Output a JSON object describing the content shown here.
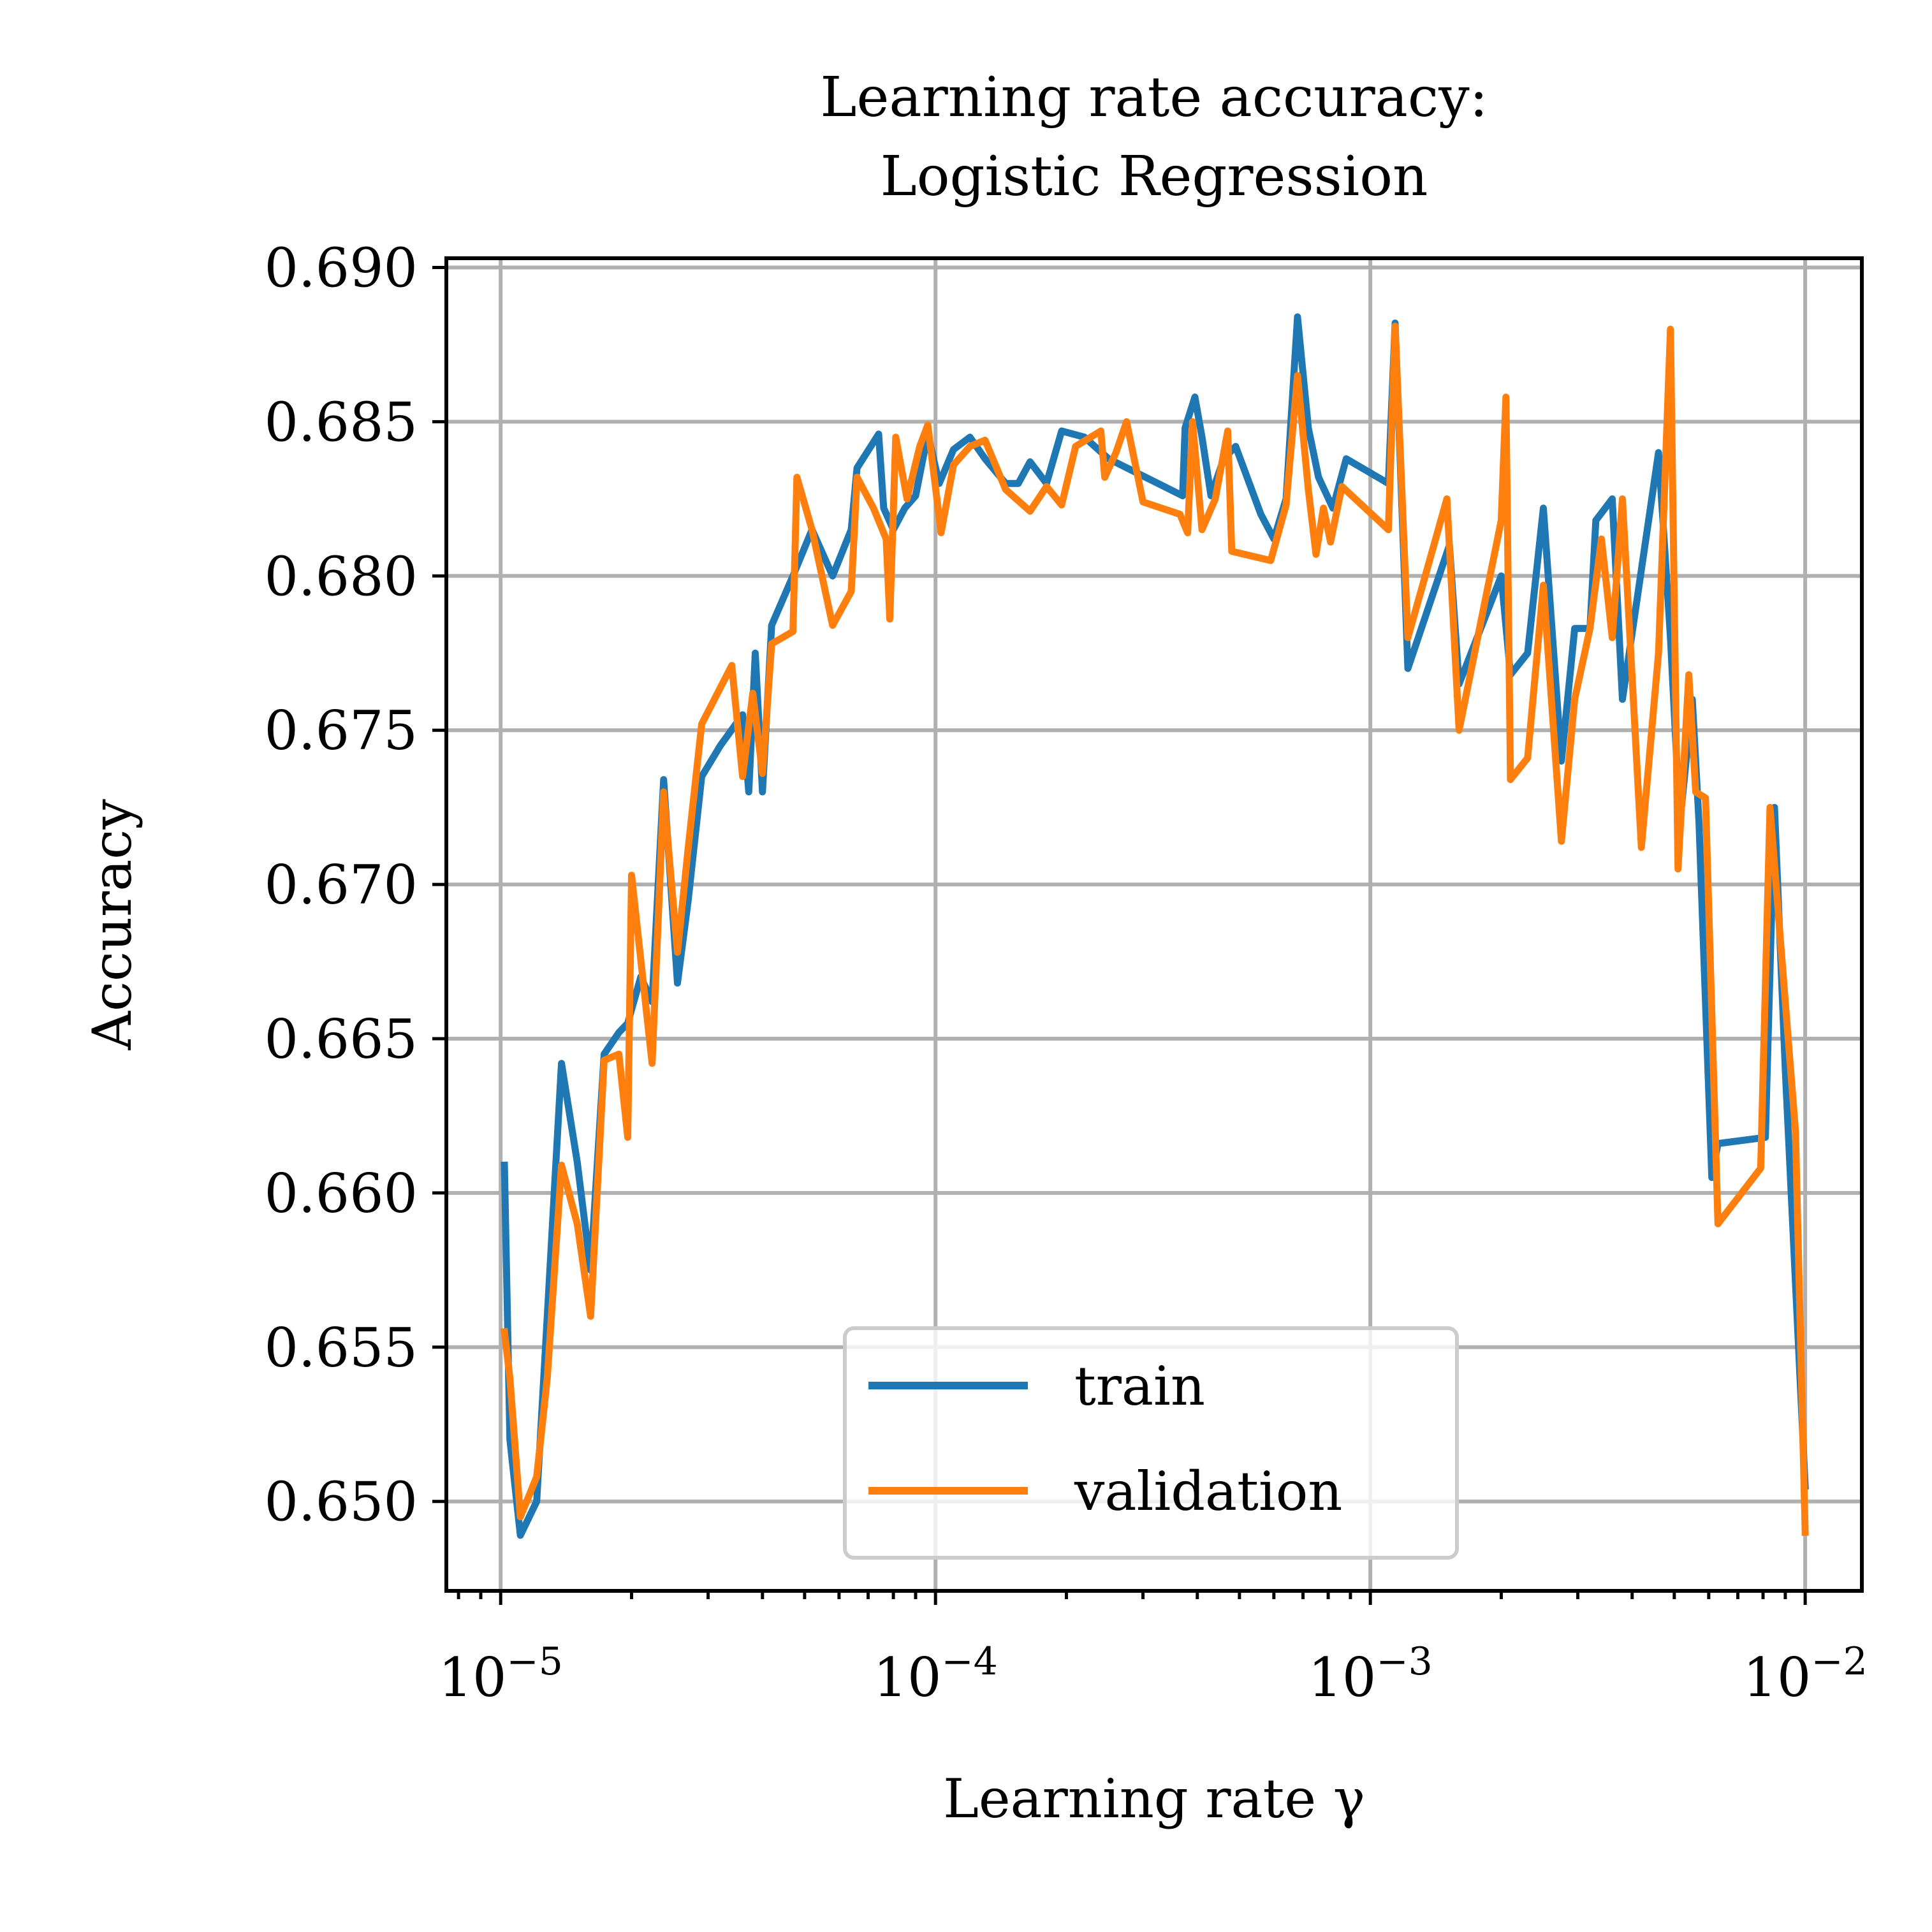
{
  "chart_data": {
    "type": "line",
    "title_lines": [
      "Learning rate accuracy:",
      "Logistic Regression"
    ],
    "xlabel": "Learning rate γ",
    "ylabel": "Accuracy",
    "xscale": "log",
    "xlim": [
      7.5e-06,
      0.0135
    ],
    "ylim": [
      0.6471,
      0.6903
    ],
    "x_ticks": [
      {
        "value": 1e-05,
        "base": "10",
        "exp": "−5"
      },
      {
        "value": 0.0001,
        "base": "10",
        "exp": "−4"
      },
      {
        "value": 0.001,
        "base": "10",
        "exp": "−3"
      },
      {
        "value": 0.01,
        "base": "10",
        "exp": "−2"
      }
    ],
    "y_ticks": [
      "0.650",
      "0.655",
      "0.660",
      "0.665",
      "0.670",
      "0.675",
      "0.680",
      "0.685",
      "0.690"
    ],
    "grid": true,
    "legend_position": "lower center",
    "series": [
      {
        "name": "train",
        "color": "#1f77b4",
        "points": [
          [
            1.02e-05,
            0.6609
          ],
          [
            1.05e-05,
            0.652
          ],
          [
            1.11e-05,
            0.6489
          ],
          [
            1.21e-05,
            0.65
          ],
          [
            1.28e-05,
            0.656
          ],
          [
            1.38e-05,
            0.6642
          ],
          [
            1.5e-05,
            0.661
          ],
          [
            1.61e-05,
            0.6575
          ],
          [
            1.73e-05,
            0.6645
          ],
          [
            1.87e-05,
            0.6652
          ],
          [
            1.96e-05,
            0.6655
          ],
          [
            2.1e-05,
            0.667
          ],
          [
            2.23e-05,
            0.6662
          ],
          [
            2.37e-05,
            0.6734
          ],
          [
            2.55e-05,
            0.6668
          ],
          [
            2.7e-05,
            0.6695
          ],
          [
            2.9e-05,
            0.6735
          ],
          [
            3.2e-05,
            0.6745
          ],
          [
            3.6e-05,
            0.6755
          ],
          [
            3.72e-05,
            0.673
          ],
          [
            3.85e-05,
            0.6775
          ],
          [
            4e-05,
            0.673
          ],
          [
            4.2e-05,
            0.6784
          ],
          [
            4.7e-05,
            0.68
          ],
          [
            5.2e-05,
            0.6815
          ],
          [
            5.8e-05,
            0.68
          ],
          [
            6.4e-05,
            0.6815
          ],
          [
            6.6e-05,
            0.6835
          ],
          [
            7.4e-05,
            0.6846
          ],
          [
            7.6e-05,
            0.6822
          ],
          [
            8e-05,
            0.6815
          ],
          [
            8.5e-05,
            0.6822
          ],
          [
            9e-05,
            0.6826
          ],
          [
            9.6e-05,
            0.6846
          ],
          [
            0.000102,
            0.683
          ],
          [
            0.00011,
            0.6841
          ],
          [
            0.00012,
            0.6845
          ],
          [
            0.00013,
            0.6838
          ],
          [
            0.000145,
            0.683
          ],
          [
            0.000155,
            0.683
          ],
          [
            0.000165,
            0.6837
          ],
          [
            0.00018,
            0.683
          ],
          [
            0.000195,
            0.6847
          ],
          [
            0.00022,
            0.6845
          ],
          [
            0.00025,
            0.6838
          ],
          [
            0.00037,
            0.6826
          ],
          [
            0.000375,
            0.6848
          ],
          [
            0.000395,
            0.6858
          ],
          [
            0.00041,
            0.6845
          ],
          [
            0.00043,
            0.6826
          ],
          [
            0.00046,
            0.6838
          ],
          [
            0.00049,
            0.6842
          ],
          [
            0.00056,
            0.682
          ],
          [
            0.0006,
            0.6812
          ],
          [
            0.00064,
            0.6825
          ],
          [
            0.00068,
            0.6884
          ],
          [
            0.00072,
            0.6848
          ],
          [
            0.00076,
            0.6832
          ],
          [
            0.00082,
            0.6822
          ],
          [
            0.00088,
            0.6838
          ],
          [
            0.0011,
            0.683
          ],
          [
            0.00114,
            0.6882
          ],
          [
            0.00122,
            0.677
          ],
          [
            0.00152,
            0.681
          ],
          [
            0.0016,
            0.6765
          ],
          [
            0.002,
            0.68
          ],
          [
            0.0021,
            0.6768
          ],
          [
            0.0023,
            0.6775
          ],
          [
            0.0025,
            0.6822
          ],
          [
            0.00275,
            0.674
          ],
          [
            0.00295,
            0.6783
          ],
          [
            0.0032,
            0.6783
          ],
          [
            0.0033,
            0.6818
          ],
          [
            0.0036,
            0.6825
          ],
          [
            0.0038,
            0.676
          ],
          [
            0.0046,
            0.684
          ],
          [
            0.0049,
            0.678
          ],
          [
            0.00515,
            0.672
          ],
          [
            0.0055,
            0.676
          ],
          [
            0.0057,
            0.672
          ],
          [
            0.0061,
            0.6605
          ],
          [
            0.0063,
            0.6616
          ],
          [
            0.0081,
            0.6618
          ],
          [
            0.0085,
            0.6725
          ],
          [
            0.009,
            0.664
          ],
          [
            0.01,
            0.6505
          ]
        ]
      },
      {
        "name": "validation",
        "color": "#ff7f0e",
        "points": [
          [
            1.02e-05,
            0.6555
          ],
          [
            1.05e-05,
            0.654
          ],
          [
            1.11e-05,
            0.6495
          ],
          [
            1.21e-05,
            0.6508
          ],
          [
            1.28e-05,
            0.654
          ],
          [
            1.38e-05,
            0.6609
          ],
          [
            1.5e-05,
            0.659
          ],
          [
            1.61e-05,
            0.656
          ],
          [
            1.73e-05,
            0.6643
          ],
          [
            1.87e-05,
            0.6645
          ],
          [
            1.96e-05,
            0.6618
          ],
          [
            2e-05,
            0.6703
          ],
          [
            2.23e-05,
            0.6642
          ],
          [
            2.37e-05,
            0.673
          ],
          [
            2.55e-05,
            0.6678
          ],
          [
            2.7e-05,
            0.6712
          ],
          [
            2.9e-05,
            0.6752
          ],
          [
            3.4e-05,
            0.6771
          ],
          [
            3.6e-05,
            0.6735
          ],
          [
            3.8e-05,
            0.6762
          ],
          [
            4e-05,
            0.6736
          ],
          [
            4.2e-05,
            0.6778
          ],
          [
            4.7e-05,
            0.6782
          ],
          [
            4.8e-05,
            0.6832
          ],
          [
            5.2e-05,
            0.6815
          ],
          [
            5.8e-05,
            0.6784
          ],
          [
            6.4e-05,
            0.6795
          ],
          [
            6.6e-05,
            0.6832
          ],
          [
            7.2e-05,
            0.6822
          ],
          [
            7.7e-05,
            0.6812
          ],
          [
            7.85e-05,
            0.6786
          ],
          [
            8.1e-05,
            0.6845
          ],
          [
            8.6e-05,
            0.6825
          ],
          [
            9.2e-05,
            0.6842
          ],
          [
            9.6e-05,
            0.6849
          ],
          [
            0.000103,
            0.6814
          ],
          [
            0.00011,
            0.6836
          ],
          [
            0.00012,
            0.6842
          ],
          [
            0.00013,
            0.6844
          ],
          [
            0.000145,
            0.6828
          ],
          [
            0.000165,
            0.6821
          ],
          [
            0.00018,
            0.6829
          ],
          [
            0.000195,
            0.6823
          ],
          [
            0.00021,
            0.6842
          ],
          [
            0.00024,
            0.6847
          ],
          [
            0.000245,
            0.6832
          ],
          [
            0.00026,
            0.684
          ],
          [
            0.000275,
            0.685
          ],
          [
            0.0003,
            0.6824
          ],
          [
            0.000365,
            0.682
          ],
          [
            0.00038,
            0.6814
          ],
          [
            0.00039,
            0.685
          ],
          [
            0.00041,
            0.6815
          ],
          [
            0.00044,
            0.6825
          ],
          [
            0.00047,
            0.6847
          ],
          [
            0.00048,
            0.6808
          ],
          [
            0.00059,
            0.6805
          ],
          [
            0.00064,
            0.6823
          ],
          [
            0.00068,
            0.6865
          ],
          [
            0.00072,
            0.6828
          ],
          [
            0.00075,
            0.6807
          ],
          [
            0.00078,
            0.6822
          ],
          [
            0.00081,
            0.6811
          ],
          [
            0.00086,
            0.6829
          ],
          [
            0.0011,
            0.6815
          ],
          [
            0.00114,
            0.6881
          ],
          [
            0.00122,
            0.678
          ],
          [
            0.0015,
            0.6825
          ],
          [
            0.0016,
            0.675
          ],
          [
            0.002,
            0.6818
          ],
          [
            0.00205,
            0.6858
          ],
          [
            0.0021,
            0.6734
          ],
          [
            0.0023,
            0.6741
          ],
          [
            0.0025,
            0.6797
          ],
          [
            0.00275,
            0.6714
          ],
          [
            0.00295,
            0.676
          ],
          [
            0.0032,
            0.6783
          ],
          [
            0.0034,
            0.6812
          ],
          [
            0.0036,
            0.678
          ],
          [
            0.0038,
            0.6825
          ],
          [
            0.0042,
            0.6712
          ],
          [
            0.0046,
            0.6775
          ],
          [
            0.0049,
            0.688
          ],
          [
            0.0051,
            0.6705
          ],
          [
            0.0054,
            0.6768
          ],
          [
            0.0056,
            0.673
          ],
          [
            0.0059,
            0.6728
          ],
          [
            0.0063,
            0.659
          ],
          [
            0.0079,
            0.6608
          ],
          [
            0.0083,
            0.6725
          ],
          [
            0.0095,
            0.662
          ],
          [
            0.01,
            0.649
          ]
        ]
      }
    ]
  }
}
